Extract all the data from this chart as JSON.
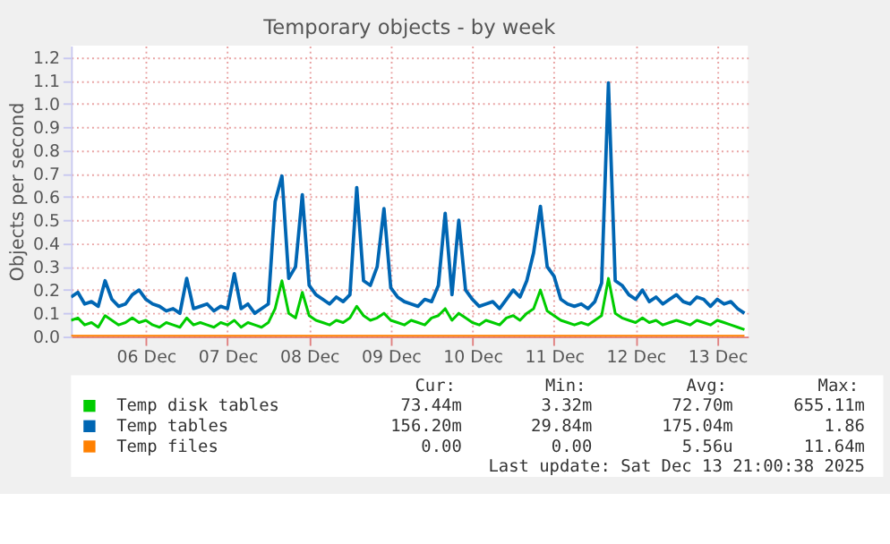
{
  "chart_data": {
    "type": "line",
    "title": "Temporary objects - by week",
    "ylabel": "Objects per second",
    "x": [
      "2025-12-05T14:00",
      "2025-12-05T16:00",
      "2025-12-05T18:00",
      "2025-12-05T20:00",
      "2025-12-05T22:00",
      "2025-12-06T00:00",
      "2025-12-06T02:00",
      "2025-12-06T04:00",
      "2025-12-06T06:00",
      "2025-12-06T08:00",
      "2025-12-06T10:00",
      "2025-12-06T12:00",
      "2025-12-06T14:00",
      "2025-12-06T16:00",
      "2025-12-06T18:00",
      "2025-12-06T20:00",
      "2025-12-06T22:00",
      "2025-12-07T00:00",
      "2025-12-07T02:00",
      "2025-12-07T04:00",
      "2025-12-07T06:00",
      "2025-12-07T08:00",
      "2025-12-07T10:00",
      "2025-12-07T12:00",
      "2025-12-07T14:00",
      "2025-12-07T16:00",
      "2025-12-07T18:00",
      "2025-12-07T20:00",
      "2025-12-07T22:00",
      "2025-12-08T00:00",
      "2025-12-08T02:00",
      "2025-12-08T04:00",
      "2025-12-08T06:00",
      "2025-12-08T08:00",
      "2025-12-08T10:00",
      "2025-12-08T12:00",
      "2025-12-08T14:00",
      "2025-12-08T16:00",
      "2025-12-08T18:00",
      "2025-12-08T20:00",
      "2025-12-08T22:00",
      "2025-12-09T00:00",
      "2025-12-09T02:00",
      "2025-12-09T04:00",
      "2025-12-09T06:00",
      "2025-12-09T08:00",
      "2025-12-09T10:00",
      "2025-12-09T12:00",
      "2025-12-09T14:00",
      "2025-12-09T16:00",
      "2025-12-09T18:00",
      "2025-12-09T20:00",
      "2025-12-09T22:00",
      "2025-12-10T00:00",
      "2025-12-10T02:00",
      "2025-12-10T04:00",
      "2025-12-10T06:00",
      "2025-12-10T08:00",
      "2025-12-10T10:00",
      "2025-12-10T12:00",
      "2025-12-10T14:00",
      "2025-12-10T16:00",
      "2025-12-10T18:00",
      "2025-12-10T20:00",
      "2025-12-10T22:00",
      "2025-12-11T00:00",
      "2025-12-11T02:00",
      "2025-12-11T04:00",
      "2025-12-11T06:00",
      "2025-12-11T08:00",
      "2025-12-11T10:00",
      "2025-12-11T12:00",
      "2025-12-11T14:00",
      "2025-12-11T16:00",
      "2025-12-11T18:00",
      "2025-12-11T20:00",
      "2025-12-11T22:00",
      "2025-12-12T00:00",
      "2025-12-12T02:00",
      "2025-12-12T04:00",
      "2025-12-12T06:00",
      "2025-12-12T08:00",
      "2025-12-12T10:00",
      "2025-12-12T12:00",
      "2025-12-12T14:00",
      "2025-12-12T16:00",
      "2025-12-12T18:00",
      "2025-12-12T20:00",
      "2025-12-12T22:00",
      "2025-12-13T00:00",
      "2025-12-13T02:00",
      "2025-12-13T04:00",
      "2025-12-13T06:00",
      "2025-12-13T08:00",
      "2025-12-13T10:00",
      "2025-12-13T12:00",
      "2025-12-13T14:00",
      "2025-12-13T16:00",
      "2025-12-13T18:00",
      "2025-12-13T20:00"
    ],
    "series": [
      {
        "name": "Temp disk tables",
        "color": "#00cc00",
        "values": [
          0.07,
          0.08,
          0.05,
          0.06,
          0.04,
          0.09,
          0.07,
          0.05,
          0.06,
          0.08,
          0.06,
          0.07,
          0.05,
          0.04,
          0.06,
          0.05,
          0.04,
          0.08,
          0.05,
          0.06,
          0.05,
          0.04,
          0.06,
          0.05,
          0.07,
          0.04,
          0.06,
          0.05,
          0.04,
          0.06,
          0.12,
          0.24,
          0.1,
          0.08,
          0.19,
          0.09,
          0.07,
          0.06,
          0.05,
          0.07,
          0.06,
          0.08,
          0.13,
          0.09,
          0.07,
          0.08,
          0.1,
          0.07,
          0.06,
          0.05,
          0.07,
          0.06,
          0.05,
          0.08,
          0.09,
          0.12,
          0.07,
          0.1,
          0.08,
          0.06,
          0.05,
          0.07,
          0.06,
          0.05,
          0.08,
          0.09,
          0.07,
          0.1,
          0.12,
          0.2,
          0.11,
          0.09,
          0.07,
          0.06,
          0.05,
          0.06,
          0.05,
          0.07,
          0.09,
          0.25,
          0.1,
          0.08,
          0.07,
          0.06,
          0.08,
          0.06,
          0.07,
          0.05,
          0.06,
          0.07,
          0.06,
          0.05,
          0.07,
          0.06,
          0.05,
          0.07,
          0.06,
          0.05,
          0.04,
          0.03
        ]
      },
      {
        "name": "Temp tables",
        "color": "#0066b3",
        "values": [
          0.17,
          0.19,
          0.14,
          0.15,
          0.13,
          0.24,
          0.16,
          0.13,
          0.14,
          0.18,
          0.2,
          0.16,
          0.14,
          0.13,
          0.11,
          0.12,
          0.1,
          0.25,
          0.12,
          0.13,
          0.14,
          0.11,
          0.13,
          0.12,
          0.27,
          0.12,
          0.14,
          0.1,
          0.12,
          0.14,
          0.58,
          0.69,
          0.25,
          0.3,
          0.61,
          0.22,
          0.18,
          0.16,
          0.14,
          0.17,
          0.15,
          0.18,
          0.64,
          0.24,
          0.22,
          0.3,
          0.55,
          0.21,
          0.17,
          0.15,
          0.14,
          0.13,
          0.16,
          0.15,
          0.22,
          0.53,
          0.18,
          0.5,
          0.2,
          0.16,
          0.13,
          0.14,
          0.15,
          0.12,
          0.16,
          0.2,
          0.17,
          0.24,
          0.36,
          0.56,
          0.3,
          0.26,
          0.16,
          0.14,
          0.13,
          0.14,
          0.12,
          0.15,
          0.23,
          1.09,
          0.24,
          0.22,
          0.18,
          0.16,
          0.2,
          0.15,
          0.17,
          0.14,
          0.16,
          0.18,
          0.15,
          0.14,
          0.17,
          0.16,
          0.13,
          0.16,
          0.14,
          0.15,
          0.12,
          0.1
        ]
      },
      {
        "name": "Temp files",
        "color": "#ff8000",
        "values": [
          0,
          0,
          0,
          0,
          0,
          0,
          0,
          0,
          0,
          0,
          0,
          0,
          0,
          0,
          0,
          0,
          0,
          0,
          0,
          0,
          0,
          0,
          0,
          0,
          0,
          0,
          0,
          0,
          0,
          0,
          0,
          0,
          0,
          0,
          0,
          0,
          0,
          0,
          0,
          0,
          0,
          0,
          0,
          0,
          0,
          0,
          0,
          0,
          0,
          0,
          0,
          0,
          0,
          0,
          0,
          0,
          0,
          0,
          0,
          0,
          0,
          0,
          0,
          0,
          0,
          0,
          0,
          0,
          0,
          0,
          0,
          0,
          0,
          0,
          0,
          0,
          0,
          0,
          0,
          0,
          0,
          0,
          0,
          0,
          0,
          0,
          0,
          0,
          0,
          0,
          0,
          0,
          0,
          0,
          0,
          0,
          0,
          0,
          0,
          0
        ]
      }
    ],
    "xlim": [
      "2025-12-05T14:00",
      "2025-12-13T21:00"
    ],
    "xticks": [
      {
        "value": "2025-12-06T12:00",
        "label": "06 Dec"
      },
      {
        "value": "2025-12-07T12:00",
        "label": "07 Dec"
      },
      {
        "value": "2025-12-08T12:00",
        "label": "08 Dec"
      },
      {
        "value": "2025-12-09T12:00",
        "label": "09 Dec"
      },
      {
        "value": "2025-12-10T12:00",
        "label": "10 Dec"
      },
      {
        "value": "2025-12-11T12:00",
        "label": "11 Dec"
      },
      {
        "value": "2025-12-12T12:00",
        "label": "12 Dec"
      },
      {
        "value": "2025-12-13T12:00",
        "label": "13 Dec"
      }
    ],
    "ylim": [
      0,
      1.25
    ],
    "yticks": [
      {
        "value": 0,
        "label": "0.0"
      },
      0.1,
      0.2,
      0.3,
      0.4,
      0.5,
      0.6,
      0.7,
      0.8,
      0.9,
      {
        "value": 1,
        "label": "1.0"
      },
      1.1,
      1.2
    ],
    "grid": true,
    "legend": "bottom left",
    "marker": "none",
    "line_style": "solid",
    "annotations": [
      "Cur:",
      "Min:",
      "Avg:",
      "Max:",
      "73.44m",
      "3.32m",
      "72.70m",
      "655.11m",
      "156.20m",
      "29.84m",
      "175.04m",
      "1.86",
      "0.00",
      "0.00",
      "5.56u",
      "11.64m",
      "Last update:  Sat Dec 13 21:00:38 2025"
    ]
  }
}
